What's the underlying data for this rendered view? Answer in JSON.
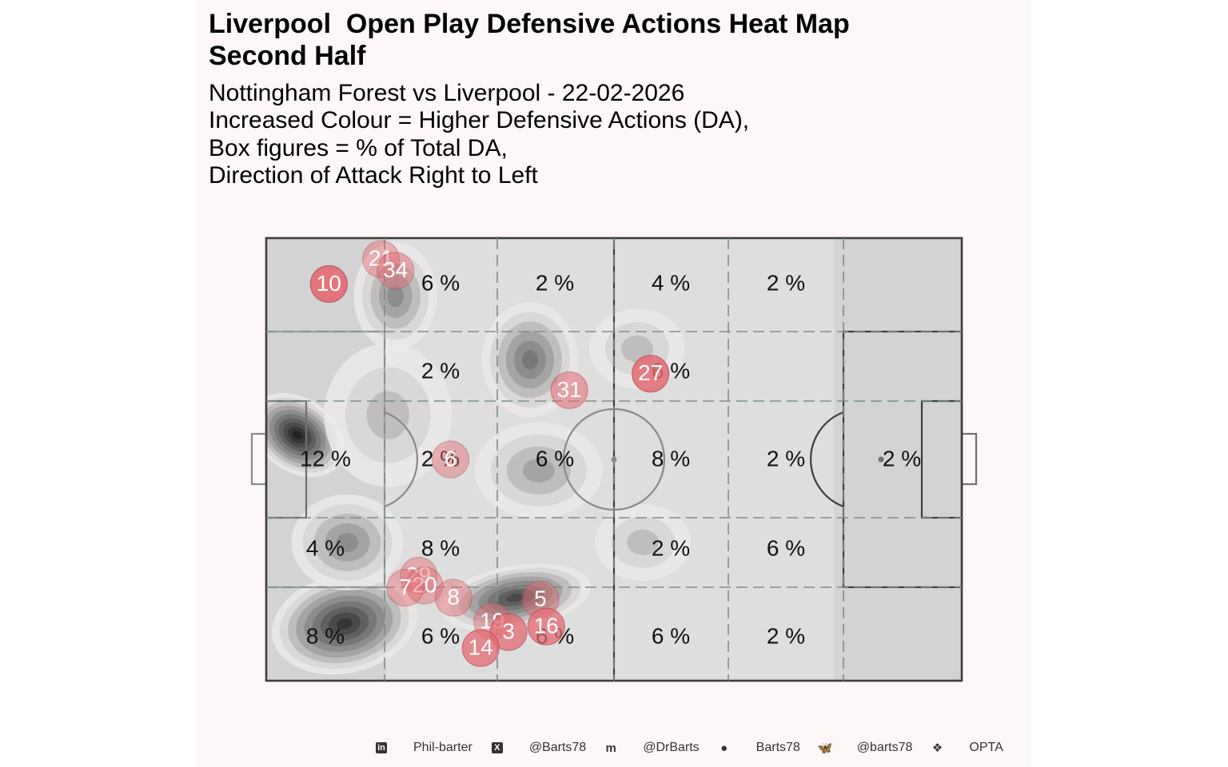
{
  "title_lines": [
    "Liverpool  Open Play Defensive Actions Heat Map",
    "Second Half"
  ],
  "subtitle_lines": [
    "Nottingham Forest vs Liverpool - 22-02-2026",
    "Increased Colour = Higher Defensive Actions (DA),",
    "Box figures = % of Total DA,",
    "Direction of Attack Right to Left"
  ],
  "colors": {
    "pitch_fill": "#d3d3d3",
    "pitch_line": "#3d3d3d",
    "grid_line": "#7a8f87",
    "player_marker": "#e36a72",
    "background": "#fdf7f7"
  },
  "chart_data": {
    "type": "heatmap",
    "x_range": [
      0,
      120
    ],
    "y_range": [
      0,
      80
    ],
    "zones_x": 6,
    "zones_y": 5,
    "zone_values": [
      [
        "",
        "6 %",
        "2 %",
        "4 %",
        "2 %",
        ""
      ],
      [
        "",
        "2 %",
        "",
        "6 %",
        "",
        ""
      ],
      [
        "12 %",
        "2 %",
        "6 %",
        "8 %",
        "2 %",
        "2 %"
      ],
      [
        "4 %",
        "8 %",
        "",
        "2 %",
        "6 %",
        ""
      ],
      [
        "8 %",
        "6 %",
        "6 %",
        "6 %",
        "2 %",
        ""
      ]
    ],
    "density_peaks": [
      {
        "x": 5.4,
        "y": 44.4,
        "level": 9
      },
      {
        "x": 13.5,
        "y": 10.3,
        "level": 8
      },
      {
        "x": 43.0,
        "y": 15.0,
        "level": 7
      },
      {
        "x": 45.5,
        "y": 58.0,
        "level": 5
      },
      {
        "x": 22.3,
        "y": 69.5,
        "level": 4
      },
      {
        "x": 21.0,
        "y": 48.0,
        "level": 2
      },
      {
        "x": 47.0,
        "y": 38.0,
        "level": 3
      },
      {
        "x": 14.0,
        "y": 25.0,
        "level": 4
      },
      {
        "x": 65.0,
        "y": 25.0,
        "level": 2
      },
      {
        "x": 64.0,
        "y": 60.0,
        "level": 2
      }
    ],
    "players": [
      {
        "number": "10",
        "x": 10.8,
        "y": 71.7,
        "opacity": 0.9
      },
      {
        "number": "21",
        "x": 19.8,
        "y": 76.2,
        "opacity": 0.45
      },
      {
        "number": "34",
        "x": 22.3,
        "y": 74.1,
        "opacity": 0.45
      },
      {
        "number": "27",
        "x": 66.3,
        "y": 55.5,
        "opacity": 0.85
      },
      {
        "number": "31",
        "x": 52.3,
        "y": 52.5,
        "opacity": 0.55
      },
      {
        "number": "6",
        "x": 31.8,
        "y": 40.0,
        "opacity": 0.45
      },
      {
        "number": "29",
        "x": 26.3,
        "y": 19.0,
        "opacity": 0.45
      },
      {
        "number": "20",
        "x": 27.3,
        "y": 17.2,
        "opacity": 0.45
      },
      {
        "number": "7",
        "x": 24.0,
        "y": 16.8,
        "opacity": 0.45
      },
      {
        "number": "8",
        "x": 32.3,
        "y": 15.0,
        "opacity": 0.45
      },
      {
        "number": "5",
        "x": 47.3,
        "y": 14.7,
        "opacity": 0.45
      },
      {
        "number": "19",
        "x": 39.0,
        "y": 10.7,
        "opacity": 0.45
      },
      {
        "number": "3",
        "x": 41.8,
        "y": 8.8,
        "opacity": 0.75
      },
      {
        "number": "16",
        "x": 48.3,
        "y": 9.8,
        "opacity": 0.75
      },
      {
        "number": "14",
        "x": 37.0,
        "y": 5.9,
        "opacity": 0.75
      }
    ]
  },
  "footer": [
    {
      "icon": "linkedin-icon",
      "glyph": "in",
      "text": "Phil-barter"
    },
    {
      "icon": "x-icon",
      "glyph": "X",
      "text": "@Barts78"
    },
    {
      "icon": "mastodon-icon",
      "glyph": "m",
      "text": "@DrBarts"
    },
    {
      "icon": "github-icon",
      "glyph": "●",
      "text": "Barts78"
    },
    {
      "icon": "bluesky-icon",
      "glyph": "🦋",
      "text": "@barts78"
    },
    {
      "icon": "dropbox-icon",
      "glyph": "❖",
      "text": "OPTA"
    }
  ]
}
